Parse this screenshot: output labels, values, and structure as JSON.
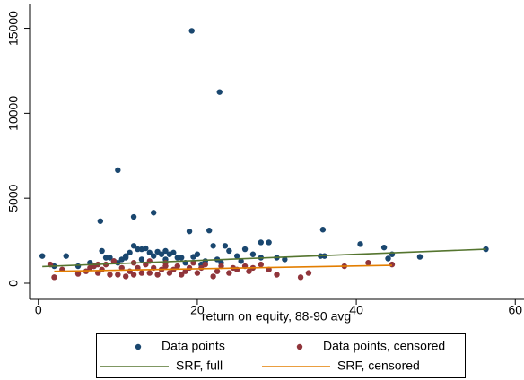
{
  "chart_data": {
    "type": "scatter",
    "x_label": "return on equity, 88-90 avg",
    "xlim": [
      -1.1,
      61.1
    ],
    "ylim": [
      -950,
      16400
    ],
    "xticks": [
      0,
      20,
      40,
      60
    ],
    "yticks": [
      0,
      5000,
      10000,
      15000
    ],
    "grid": false,
    "legend": "bottom",
    "series": [
      {
        "name": "Data points",
        "type": "scatter",
        "color": "#1a476f",
        "x": [
          0.5,
          3.5,
          7.8,
          10,
          12,
          14.5,
          19.3,
          22.8,
          19,
          21.5,
          35.8,
          40.5,
          43.5,
          56.3,
          48,
          44.5,
          44,
          35.5,
          29,
          28,
          26,
          23.5,
          22,
          24,
          25,
          27,
          20,
          18,
          17,
          16,
          15,
          14,
          13,
          12.5,
          12,
          11.5,
          11,
          10.5,
          9.5,
          9,
          8.5,
          8,
          10,
          13,
          14.5,
          16.5,
          17.5,
          13.5,
          15.5,
          22.5,
          21,
          19.5,
          23,
          28,
          31,
          36,
          6.5,
          5,
          7,
          2,
          11,
          16,
          18.5,
          20.5,
          25.5,
          30
        ],
        "values": [
          1600,
          1600,
          3650,
          6650,
          3900,
          4150,
          14850,
          11250,
          3050,
          3100,
          3150,
          2300,
          2100,
          2000,
          1550,
          1700,
          1450,
          1600,
          2400,
          2400,
          2000,
          2200,
          2200,
          1900,
          1600,
          1700,
          1700,
          1500,
          1800,
          1900,
          1850,
          1800,
          2000,
          2000,
          2200,
          1800,
          1500,
          1400,
          1300,
          1500,
          1500,
          1900,
          1200,
          1400,
          1600,
          1700,
          1500,
          2050,
          1700,
          1400,
          1300,
          1550,
          1200,
          1500,
          1400,
          1600,
          1200,
          1000,
          1000,
          1000,
          1600,
          1400,
          1200,
          1100,
          1300,
          1500
        ]
      },
      {
        "name": "Data points, censored",
        "type": "scatter",
        "color": "#90353b",
        "x": [
          1.5,
          2,
          3,
          5,
          6,
          6.5,
          7,
          7.5,
          8,
          8.5,
          9,
          9.5,
          10,
          10.5,
          11,
          11.5,
          12,
          12.5,
          13,
          13.5,
          14,
          14.5,
          15,
          15.5,
          16,
          16.5,
          17,
          17.5,
          18,
          18.5,
          19,
          20,
          20.5,
          21,
          22,
          22.5,
          23,
          24,
          24.5,
          25,
          26,
          26.5,
          27,
          28,
          29,
          30,
          33,
          34,
          38.5,
          41.5,
          44.5,
          12,
          14,
          16,
          19.5,
          7.5
        ],
        "values": [
          1100,
          350,
          800,
          550,
          700,
          900,
          1000,
          600,
          800,
          1100,
          500,
          1300,
          500,
          900,
          400,
          700,
          500,
          900,
          600,
          1100,
          600,
          900,
          500,
          800,
          1000,
          600,
          800,
          1000,
          500,
          700,
          900,
          600,
          900,
          1100,
          400,
          700,
          1000,
          600,
          900,
          800,
          1000,
          700,
          900,
          1100,
          800,
          500,
          350,
          600,
          1000,
          1200,
          1100,
          1200,
          1300,
          1200,
          1200,
          1100
        ]
      },
      {
        "name": "SRF, full",
        "type": "line",
        "color": "#55752f",
        "x": [
          0.5,
          56.3
        ],
        "values": [
          980,
          2000
        ]
      },
      {
        "name": "SRF, censored",
        "type": "line",
        "color": "#e37e00",
        "x": [
          2,
          44.5
        ],
        "values": [
          700,
          1050
        ]
      }
    ]
  }
}
